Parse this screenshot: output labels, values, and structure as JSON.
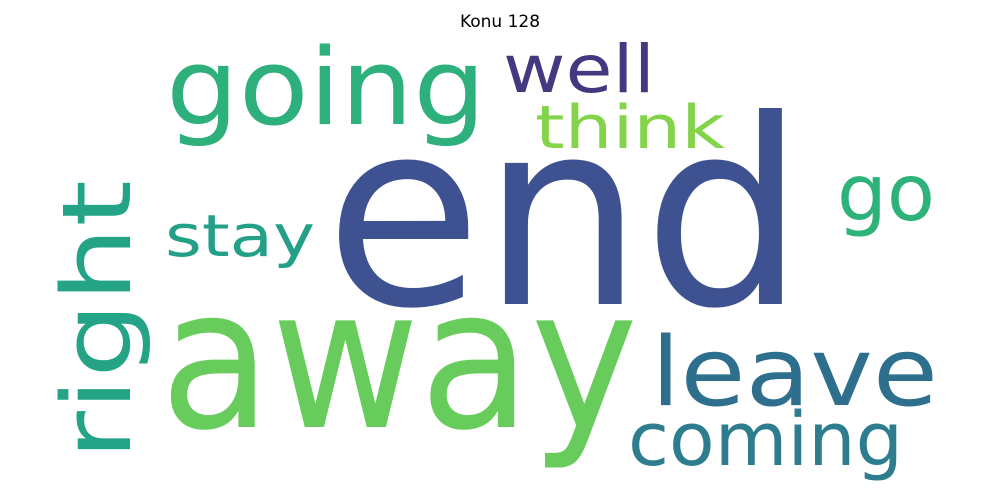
{
  "title": "Konu 128",
  "words": [
    {
      "text": "end",
      "color": "#3e5291"
    },
    {
      "text": "away",
      "color": "#67cc5c"
    },
    {
      "text": "going",
      "color": "#2db07b"
    },
    {
      "text": "leave",
      "color": "#2f6f8e"
    },
    {
      "text": "coming",
      "color": "#2d7d8e"
    },
    {
      "text": "right",
      "color": "#24a386"
    },
    {
      "text": "well",
      "color": "#463880"
    },
    {
      "text": "think",
      "color": "#84d44b"
    },
    {
      "text": "go",
      "color": "#2db37a"
    },
    {
      "text": "stay",
      "color": "#23a087"
    }
  ]
}
